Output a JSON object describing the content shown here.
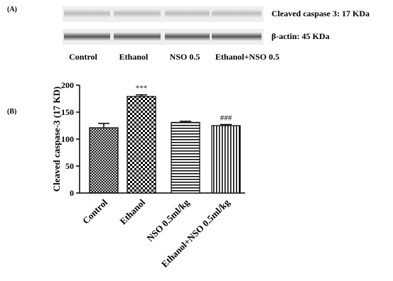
{
  "panel_labels": [
    "(A)",
    "(B)"
  ],
  "blot": {
    "bands": [
      "Cleaved caspase 3: 17 KDa",
      "β-actin: 45 KDa"
    ],
    "lanes": [
      "Control",
      "Ethanol",
      "NSO 0.5",
      "Ethanol+NSO 0.5"
    ]
  },
  "chart_data": {
    "type": "bar",
    "categories": [
      "Control",
      "Ethanol",
      "NSO 0.5ml/kg",
      "Ethanol+NSO 0.5ml/kg"
    ],
    "values": [
      121,
      179,
      131,
      125
    ],
    "errors": [
      8,
      3,
      2,
      2
    ],
    "annotations": [
      null,
      "***",
      null,
      "###"
    ],
    "y_label": "Cleaved caspase-3 (17 KD)",
    "ylim": [
      0,
      200
    ],
    "yticks": [
      0,
      50,
      100,
      150,
      200
    ]
  }
}
